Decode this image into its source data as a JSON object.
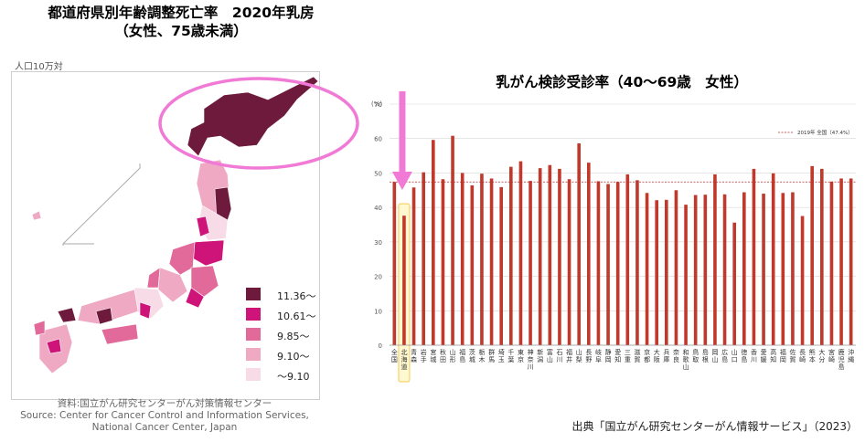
{
  "left_title": {
    "line1": "都道府県別年齢調整死亡率　2020年乳房",
    "line2": "（女性、75歳未満）"
  },
  "map": {
    "unit": "人口10万対",
    "legend": [
      {
        "label": "11.36～",
        "color": "#6e1a3c"
      },
      {
        "label": "10.61～",
        "color": "#cf1479"
      },
      {
        "label": "9.85～",
        "color": "#e26a9a"
      },
      {
        "label": "9.10～",
        "color": "#efa9c3"
      },
      {
        "label": "～9.10",
        "color": "#f7dbe6"
      }
    ],
    "source_line1": "資料:国立がん研究センターがん対策情報センター",
    "source_line2": "Source: Center for Cancer Control and Information Services,",
    "source_line3": "National Cancer Center, Japan"
  },
  "right_title": "乳がん検診受診率（40～69歳　女性）",
  "footer_source": "出典「国立がん研究センターがん情報サービス」（2023）",
  "chart_data": {
    "type": "bar",
    "title": "乳がん検診受診率（40～69歳　女性）",
    "ylabel": "(%)",
    "ylim": [
      0,
      70
    ],
    "yticks": [
      0,
      10,
      20,
      30,
      40,
      50,
      60,
      70
    ],
    "bar_color": "#c0392b",
    "reference_line": {
      "label": "2019年 全国（47.4%）",
      "value": 47.4
    },
    "highlighted_category": "北海道",
    "categories": [
      "全国",
      "北海道",
      "青森",
      "岩手",
      "宮城",
      "秋田",
      "山形",
      "福島",
      "茨城",
      "栃木",
      "群馬",
      "埼玉",
      "千葉",
      "東京",
      "神奈川",
      "新潟",
      "富山",
      "石川",
      "福井",
      "山梨",
      "長野",
      "岐阜",
      "静岡",
      "愛知",
      "三重",
      "滋賀",
      "京都",
      "大阪",
      "兵庫",
      "奈良",
      "和歌山",
      "鳥取",
      "島根",
      "岡山",
      "広島",
      "山口",
      "徳島",
      "香川",
      "愛媛",
      "高知",
      "福岡",
      "佐賀",
      "長崎",
      "熊本",
      "大分",
      "宮崎",
      "鹿児島",
      "沖縄"
    ],
    "values": [
      47.4,
      37.6,
      45.8,
      50.2,
      59.6,
      48.2,
      60.8,
      50.0,
      46.4,
      49.8,
      48.4,
      45.9,
      51.8,
      53.4,
      47.7,
      51.4,
      52.3,
      51.2,
      48.2,
      58.6,
      53.0,
      47.6,
      46.8,
      47.4,
      49.6,
      47.9,
      44.2,
      42.1,
      42.2,
      45.0,
      40.8,
      43.6,
      43.7,
      49.6,
      43.8,
      35.6,
      44.4,
      51.2,
      44.0,
      49.9,
      44.2,
      44.4,
      37.5,
      52.0,
      51.2,
      47.5,
      48.4,
      48.4
    ]
  }
}
